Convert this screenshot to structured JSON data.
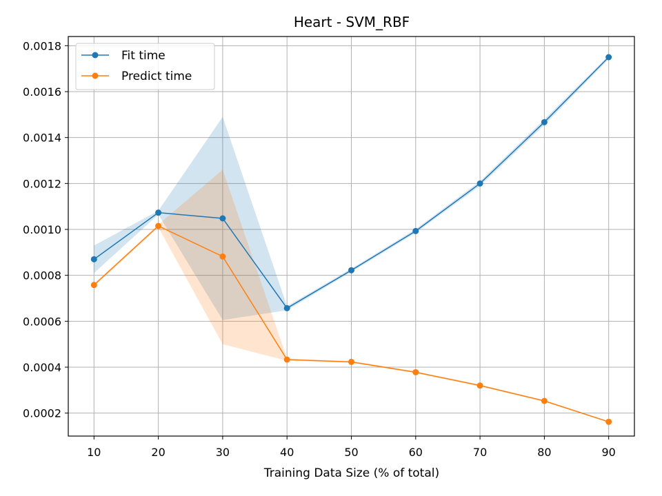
{
  "chart_data": {
    "type": "line",
    "title": "Heart - SVM_RBF",
    "xlabel": "Training Data Size (% of total)",
    "ylabel": "",
    "x": [
      10,
      20,
      30,
      40,
      50,
      60,
      70,
      80,
      90
    ],
    "xlim": [
      6,
      94
    ],
    "ylim": [
      0.0001,
      0.00184
    ],
    "xticks": [
      10,
      20,
      30,
      40,
      50,
      60,
      70,
      80,
      90
    ],
    "yticks": [
      0.0002,
      0.0004,
      0.0006,
      0.0008,
      0.001,
      0.0012,
      0.0014,
      0.0016,
      0.0018
    ],
    "ytick_labels": [
      "0.0002",
      "0.0004",
      "0.0006",
      "0.0008",
      "0.0010",
      "0.0012",
      "0.0014",
      "0.0016",
      "0.0018"
    ],
    "grid": true,
    "legend_position": "top-left",
    "series": [
      {
        "name": "Fit time",
        "color": "#1f77b4",
        "values": [
          0.00087,
          0.001073,
          0.001048,
          0.000657,
          0.000822,
          0.000993,
          0.0012,
          0.001467,
          0.00175
        ],
        "lower": [
          0.00081,
          0.001065,
          0.000605,
          0.000648,
          0.000815,
          0.000985,
          0.00119,
          0.001455,
          0.001742
        ],
        "upper": [
          0.00093,
          0.001081,
          0.00149,
          0.000666,
          0.000829,
          0.001001,
          0.00121,
          0.001479,
          0.001758
        ]
      },
      {
        "name": "Predict time",
        "color": "#ff7f0e",
        "values": [
          0.000758,
          0.001015,
          0.000882,
          0.000433,
          0.000423,
          0.000378,
          0.00032,
          0.000253,
          0.000162
        ],
        "lower": [
          0.000752,
          0.001009,
          0.0005,
          0.000428,
          0.000419,
          0.000374,
          0.000316,
          0.00025,
          0.000159
        ],
        "upper": [
          0.000764,
          0.001021,
          0.00126,
          0.000438,
          0.000427,
          0.000382,
          0.000324,
          0.000256,
          0.000165
        ]
      }
    ]
  }
}
